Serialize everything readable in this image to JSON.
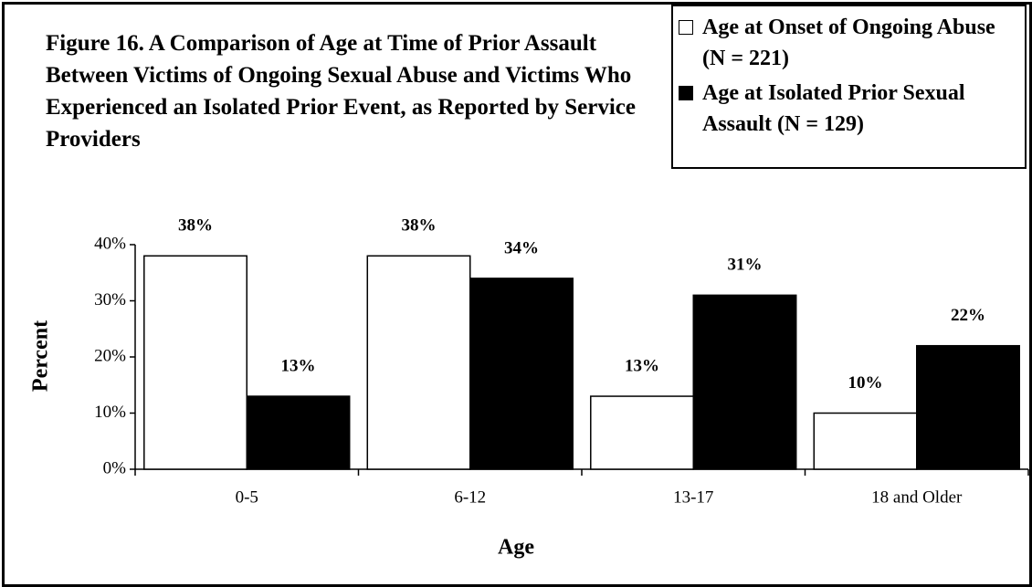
{
  "chart_data": {
    "type": "bar",
    "title": "Figure 16.  A Comparison of Age at Time of Prior Assault Between Victims of Ongoing Sexual Abuse and Victims Who Experienced an Isolated Prior Event, as Reported by Service Providers",
    "x_label": "Age",
    "y_label": "Percent",
    "categories": [
      "0-5",
      "6-12",
      "13-17",
      "18 and Older"
    ],
    "series": [
      {
        "name": "Age at Onset of Ongoing Abuse (N = 221)",
        "color": "#ffffff",
        "values": [
          38,
          38,
          13,
          10
        ],
        "value_labels": [
          "38%",
          "38%",
          "13%",
          "10%"
        ]
      },
      {
        "name": "Age at Isolated Prior Sexual Assault (N = 129)",
        "color": "#000000",
        "values": [
          13,
          34,
          31,
          22
        ],
        "value_labels": [
          "13%",
          "34%",
          "31%",
          "22%"
        ]
      }
    ],
    "ylim": [
      0,
      40
    ],
    "yticks": [
      {
        "value": 0,
        "label": "0%"
      },
      {
        "value": 10,
        "label": "10%"
      },
      {
        "value": 20,
        "label": "20%"
      },
      {
        "value": 30,
        "label": "30%"
      },
      {
        "value": 40,
        "label": "40%"
      }
    ],
    "grid": false,
    "legend": "top-right"
  }
}
